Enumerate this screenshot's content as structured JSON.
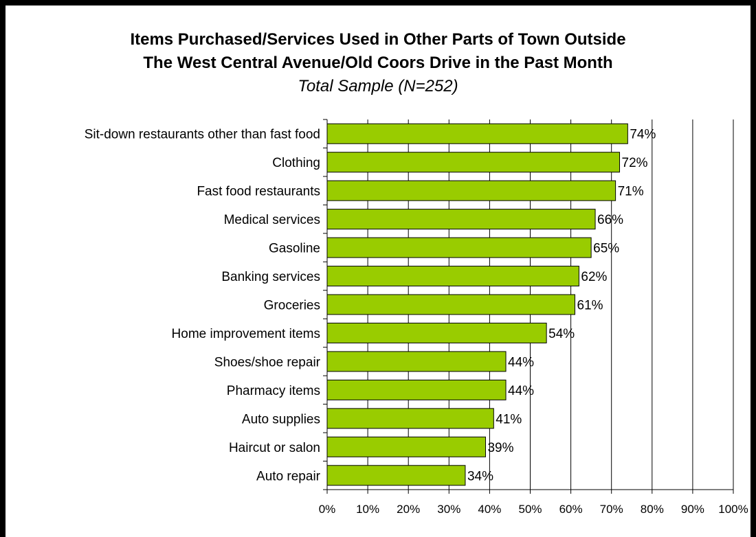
{
  "chart_data": {
    "type": "bar",
    "orientation": "horizontal",
    "title": "Items Purchased/Services Used in Other Parts of Town Outside",
    "title_line2": "The West Central Avenue/Old Coors Drive in the Past Month",
    "subtitle": "Total Sample (N=252)",
    "categories": [
      "Sit-down restaurants other than fast food",
      "Clothing",
      "Fast food restaurants",
      "Medical services",
      "Gasoline",
      "Banking services",
      "Groceries",
      "Home improvement items",
      "Shoes/shoe repair",
      "Pharmacy items",
      "Auto supplies",
      "Haircut or salon",
      "Auto repair"
    ],
    "values": [
      74,
      72,
      71,
      66,
      65,
      62,
      61,
      54,
      44,
      44,
      41,
      39,
      34
    ],
    "data_labels": [
      "74%",
      "72%",
      "71%",
      "66%",
      "65%",
      "62%",
      "61%",
      "54%",
      "44%",
      "44%",
      "41%",
      "39%",
      "34%"
    ],
    "xlim": [
      0,
      100
    ],
    "x_ticks": [
      "0%",
      "10%",
      "20%",
      "30%",
      "40%",
      "50%",
      "60%",
      "70%",
      "80%",
      "90%",
      "100%"
    ],
    "grid": true,
    "bar_color": "#99cc00"
  }
}
